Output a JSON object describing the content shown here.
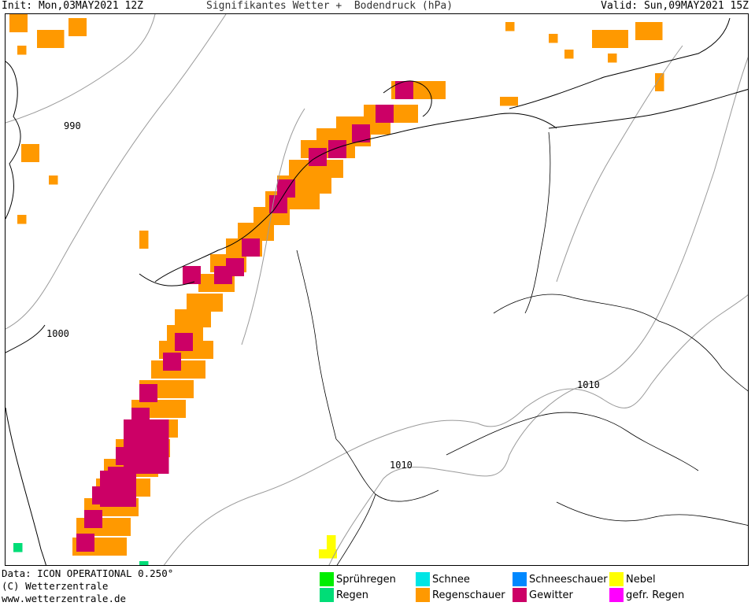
{
  "header": {
    "init": "Init: Mon,03MAY2021 12Z",
    "title": "Signifikantes Wetter +  Bodendruck (hPa)",
    "valid": "Valid: Sun,09MAY2021 15Z"
  },
  "isobars": [
    {
      "label": "990"
    },
    {
      "label": "1000"
    },
    {
      "label": "1010"
    },
    {
      "label": "1010"
    }
  ],
  "footer": {
    "data": "Data: ICON OPERATIONAL 0.250°",
    "copyright": "(C) Wetterzentrale",
    "url": "www.wetterzentrale.de"
  },
  "legend": [
    {
      "label": "Sprühregen",
      "color": "#00ee00"
    },
    {
      "label": "Regen",
      "color": "#00dd77"
    },
    {
      "label": "Schnee",
      "color": "#00e5e5"
    },
    {
      "label": "Regenschauer",
      "color": "#ff9900"
    },
    {
      "label": "Schneeschauer",
      "color": "#0088ff"
    },
    {
      "label": "Gewitter",
      "color": "#cc0066"
    },
    {
      "label": "Nebel",
      "color": "#ffff00"
    },
    {
      "label": "gefr. Regen",
      "color": "#ff00ff"
    }
  ]
}
